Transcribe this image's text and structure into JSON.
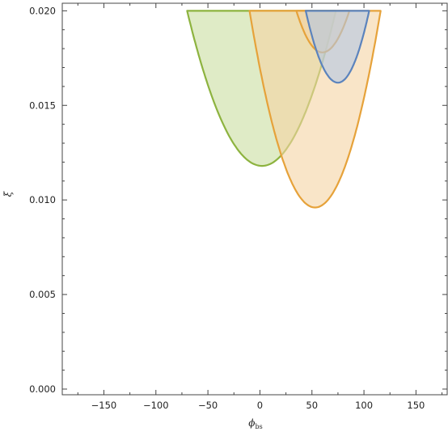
{
  "chart_data": {
    "type": "area",
    "xlabel": "ϕ",
    "xlabel_subscript": "bs",
    "ylabel": "ξ",
    "xlim": [
      -190,
      180
    ],
    "ylim": [
      -0.0003,
      0.0204
    ],
    "x_ticks": [
      -150,
      -100,
      -50,
      0,
      50,
      100,
      150
    ],
    "x_tick_labels": [
      "−150",
      "−100",
      "−50",
      "0",
      "50",
      "100",
      "150"
    ],
    "y_ticks": [
      0.0,
      0.005,
      0.01,
      0.015,
      0.02
    ],
    "y_tick_labels": [
      "0.000",
      "0.005",
      "0.010",
      "0.015",
      "0.020"
    ],
    "grid": false,
    "legend": "none",
    "series": [
      {
        "color": "#8db33f",
        "fill": "#c9dea0",
        "regions": [
          {
            "vertex_x": 2,
            "vertex_y": 0.0118,
            "x_left_at_top": -70,
            "x_right_at_top": 73,
            "y_top": 0.02
          }
        ]
      },
      {
        "color": "#e6a23a",
        "fill": "#f5d4a3",
        "regions": [
          {
            "vertex_x": 53,
            "vertex_y": 0.0096,
            "x_left_at_top": -10,
            "x_right_at_top": 116,
            "y_top": 0.02
          },
          {
            "vertex_x": 60,
            "vertex_y": 0.0178,
            "x_left_at_top": 35,
            "x_right_at_top": 86,
            "y_top": 0.02
          }
        ]
      },
      {
        "color": "#5b83bd",
        "fill": "#b3c6e4",
        "regions": [
          {
            "vertex_x": 75,
            "vertex_y": 0.0162,
            "x_left_at_top": 44,
            "x_right_at_top": 105,
            "y_top": 0.02
          }
        ]
      }
    ]
  }
}
